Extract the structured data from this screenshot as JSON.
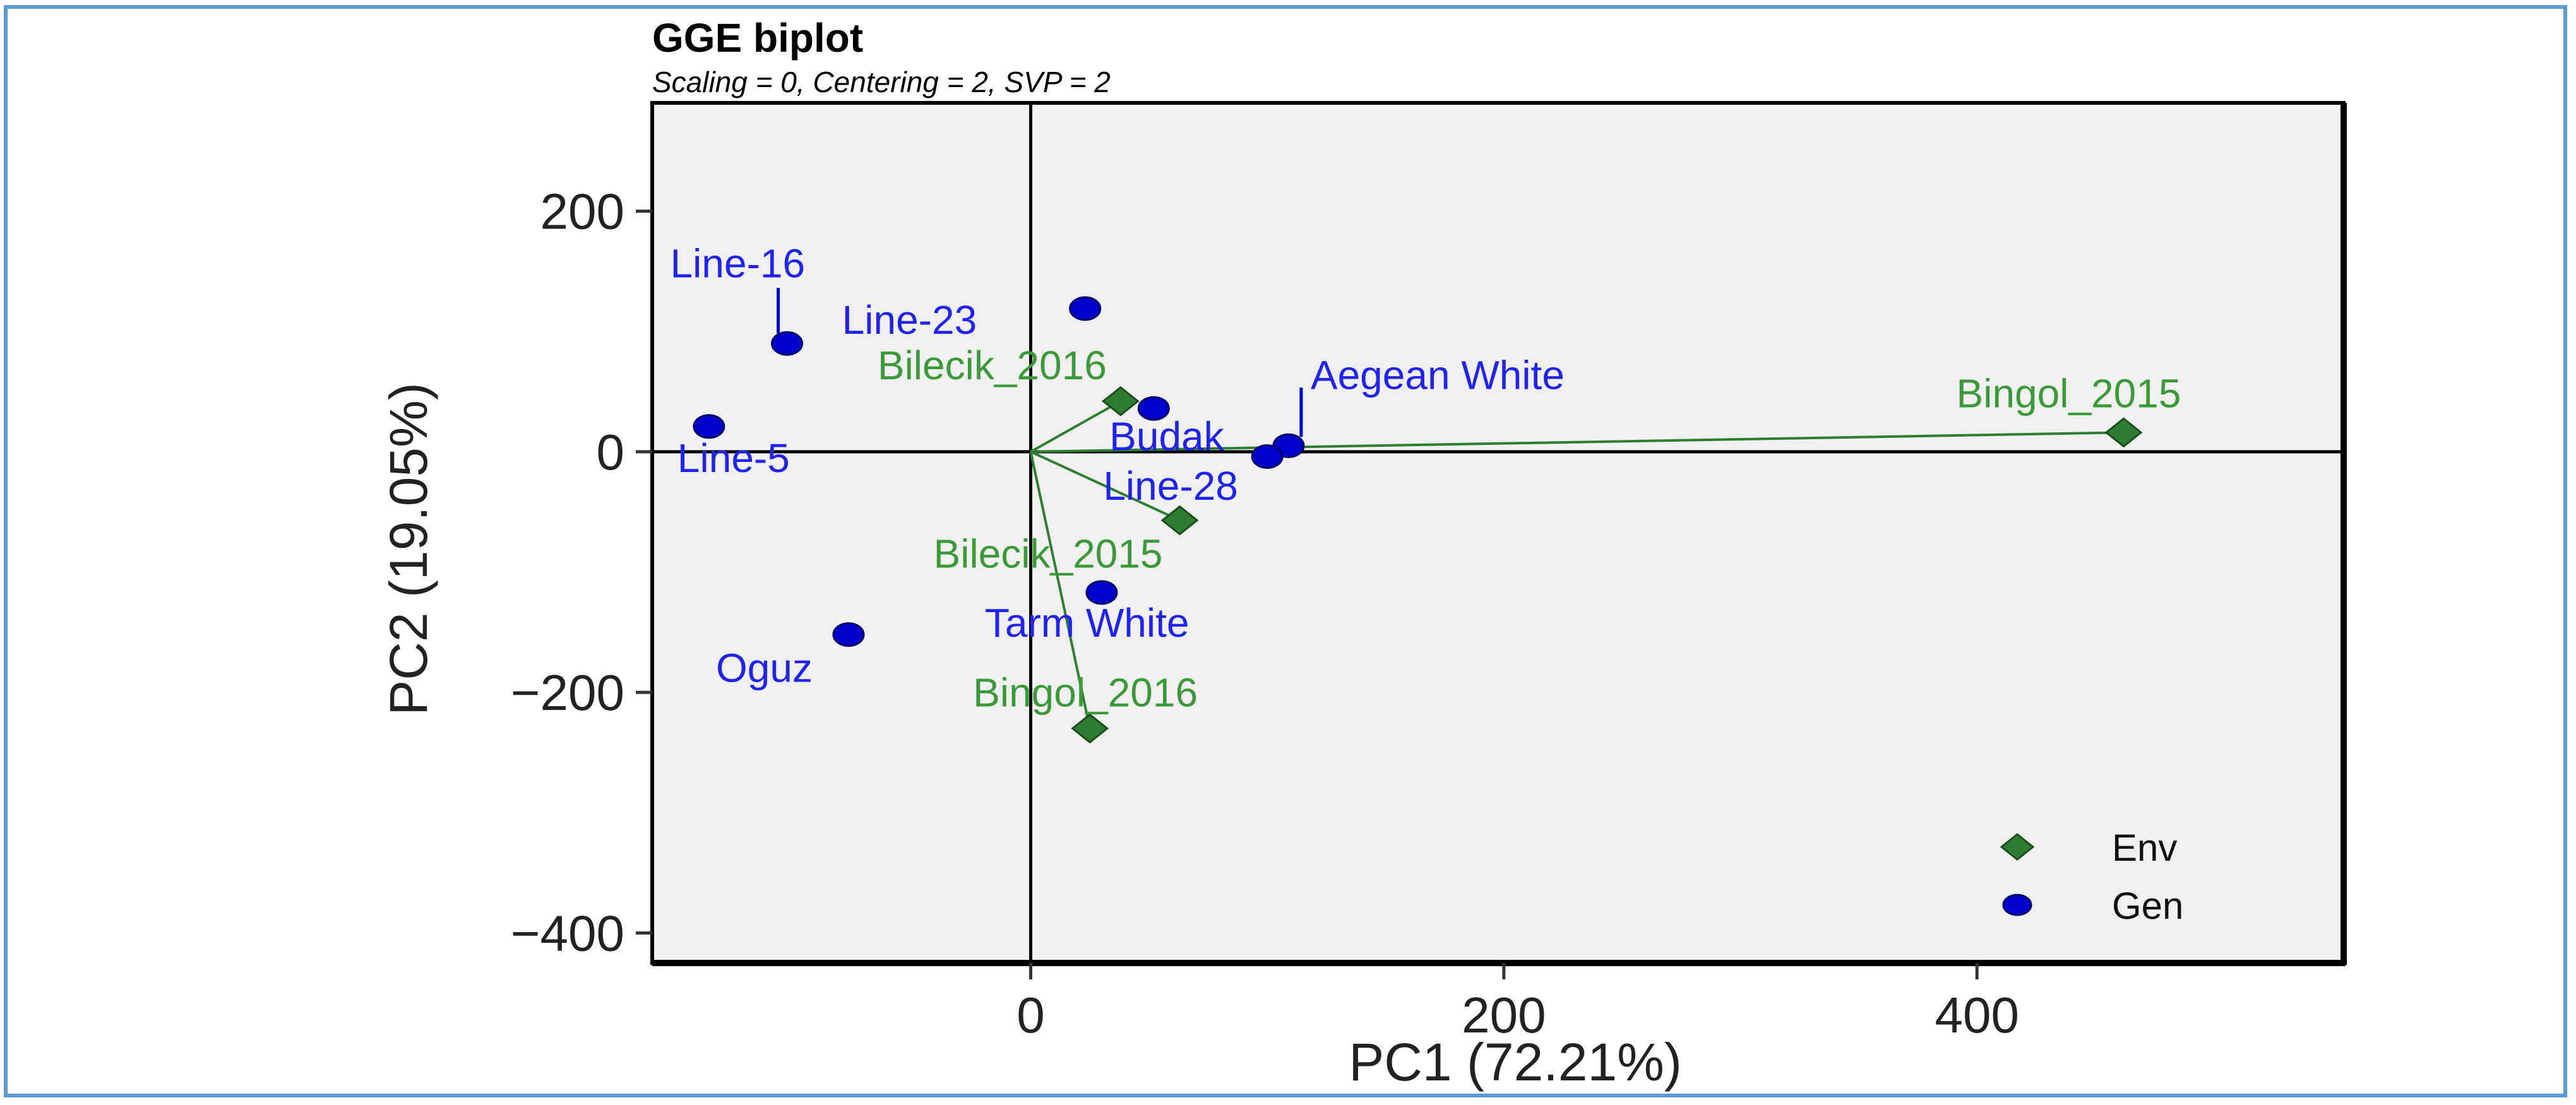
{
  "chart_data": {
    "type": "scatter",
    "title": "GGE biplot",
    "subtitle": "Scaling = 0, Centering = 2, SVP = 2",
    "xlabel": "PC1 (72.21%)",
    "ylabel": "PC2 (19.05%)",
    "xlim": [
      -160,
      555
    ],
    "ylim": [
      -425,
      290
    ],
    "xticks": [
      0,
      200,
      400
    ],
    "yticks": [
      -400,
      -200,
      0,
      200
    ],
    "grid": false,
    "legend_position": "bottom-right",
    "colors": {
      "env": "#2e7d32",
      "env_label": "#3a9a3a",
      "gen": "#0000cc",
      "gen_label": "#2222ee",
      "panel": "#f0f0f0"
    },
    "series": [
      {
        "name": "Env",
        "marker": "diamond",
        "points": [
          {
            "label": "Bingol_2015",
            "x": 462,
            "y": 16
          },
          {
            "label": "Bilecik_2016",
            "x": 38,
            "y": 42
          },
          {
            "label": "Bilecik_2015",
            "x": 63,
            "y": -57
          },
          {
            "label": "Bingol_2016",
            "x": 25,
            "y": -230
          }
        ]
      },
      {
        "name": "Gen",
        "marker": "circle",
        "points": [
          {
            "label": "Line-16",
            "x": -103,
            "y": 90
          },
          {
            "label": "Line-23",
            "x": 23,
            "y": 119
          },
          {
            "label": "Line-5",
            "x": -136,
            "y": 21
          },
          {
            "label": "Aegean White",
            "x": 109,
            "y": 5
          },
          {
            "label": "Budak",
            "x": 100,
            "y": -4
          },
          {
            "label": "Line-28",
            "x": 52,
            "y": 36
          },
          {
            "label": "Tarm White",
            "x": 30,
            "y": -117
          },
          {
            "label": "Oguz",
            "x": -77,
            "y": -152
          }
        ]
      }
    ]
  }
}
